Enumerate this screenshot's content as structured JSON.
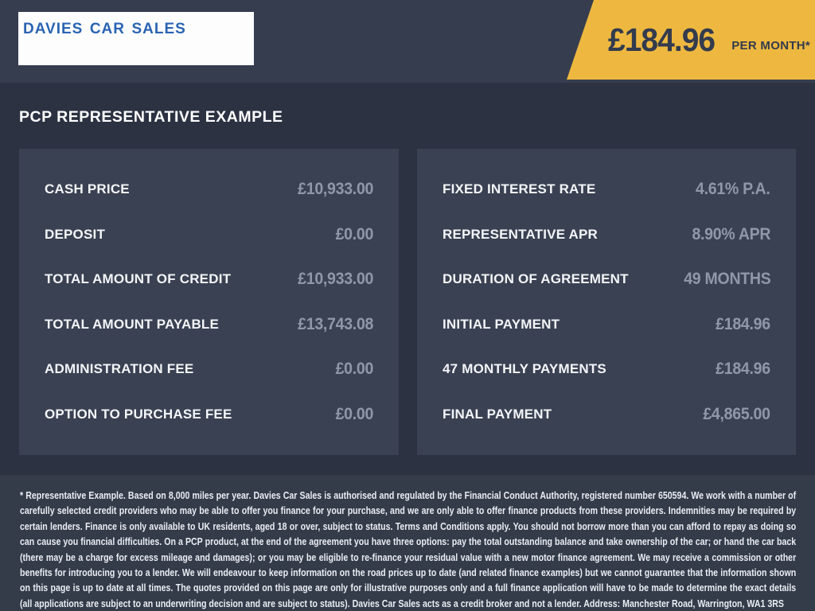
{
  "colors": {
    "accent_yellow": "#EEB840",
    "header_navy": "#363D4F",
    "page_navy": "#2C3242",
    "panel_slate": "#3A4152",
    "disclaimer_slate": "#343B49",
    "logo_blue": "#2A64B2",
    "label_white": "#F3F5F8",
    "value_gray": "#9098A8"
  },
  "header": {
    "logo_text": "Davies Car Sales",
    "monthly_price": "£184.96",
    "monthly_price_suffix": "PER MONTH*"
  },
  "page_title": "PCP REPRESENTATIVE EXAMPLE",
  "panels": {
    "left": {
      "rows": [
        {
          "label": "CASH PRICE",
          "value": "£10,933.00"
        },
        {
          "label": "DEPOSIT",
          "value": "£0.00"
        },
        {
          "label": "TOTAL AMOUNT OF CREDIT",
          "value": "£10,933.00"
        },
        {
          "label": "TOTAL AMOUNT PAYABLE",
          "value": "£13,743.08"
        },
        {
          "label": "ADMINISTRATION FEE",
          "value": "£0.00"
        },
        {
          "label": "OPTION TO PURCHASE FEE",
          "value": "£0.00"
        }
      ]
    },
    "right": {
      "rows": [
        {
          "label": "FIXED INTEREST RATE",
          "value": "4.61% P.A."
        },
        {
          "label": "REPRESENTATIVE APR",
          "value": "8.90% APR"
        },
        {
          "label": "DURATION OF AGREEMENT",
          "value": "49 MONTHS"
        },
        {
          "label": "INITIAL PAYMENT",
          "value": "£184.96"
        },
        {
          "label": "47 MONTHLY PAYMENTS",
          "value": "£184.96"
        },
        {
          "label": "FINAL PAYMENT",
          "value": "£4,865.00"
        }
      ]
    }
  },
  "disclaimer": "* Representative Example. Based on 8,000 miles per year. Davies Car Sales  is authorised and regulated by the Financial Conduct Authority, registered number 650594. We work with a number of carefully selected credit providers who may be able to offer you finance for your purchase, and we are only able to offer finance products from these providers. Indemnities may be required by certain lenders. Finance is only available to UK residents, aged 18 or over, subject to status. Terms and Conditions apply. You should not borrow more than you can afford to repay as doing so can cause you financial difficulties. On a PCP product, at the end of the agreement you have three options: pay the total outstanding balance and take ownership of the car; or hand the car back (there may be a charge for excess mileage and damages); or you may be eligible to re-finance your residual value with a new motor finance agreement. We may receive a commission or other benefits for introducing you to a lender. We will endeavour to keep information on the road prices up to date (and related finance examples) but we cannot guarantee that the information shown on this page is up to date at all times. The quotes provided on this page are only for illustrative purposes only and a full finance application will have to be made to determine the exact details (all applications are subject to an underwriting decision and are subject to status). Davies Car Sales  acts as a credit broker and not a lender. Address: Manchester Road, Warrington, WA1 3RS"
}
